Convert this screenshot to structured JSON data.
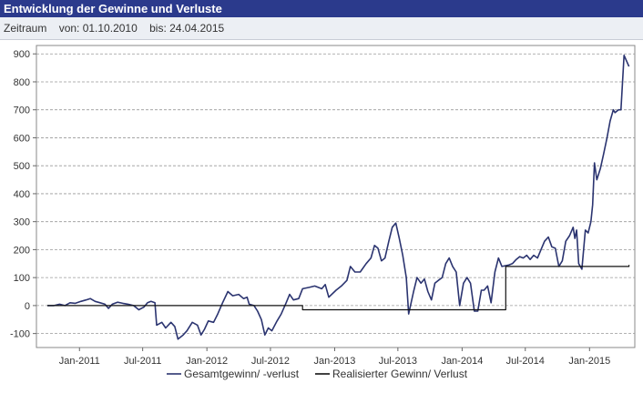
{
  "header": {
    "title": "Entwicklung der Gewinne und Verluste"
  },
  "range": {
    "label": "Zeitraum",
    "from": "von: 01.10.2010",
    "to": "bis: 24.04.2015"
  },
  "colors": {
    "header_bg": "#2b3a8c",
    "series_total": "#2b3470",
    "series_realized": "#111111",
    "grid": "#999999"
  },
  "chart_data": {
    "type": "line",
    "x_axis": {
      "start": "2010-10-01",
      "end": "2015-04-24",
      "ticks": [
        "Jan-2011",
        "Jul-2011",
        "Jan-2012",
        "Jul-2012",
        "Jan-2013",
        "Jul-2013",
        "Jan-2014",
        "Jul-2014",
        "Jan-2015"
      ]
    },
    "y_axis": {
      "ylim": [
        -150,
        930
      ],
      "ticks": [
        -100,
        0,
        100,
        200,
        300,
        400,
        500,
        600,
        700,
        800,
        900
      ],
      "grid": true
    },
    "legend": {
      "placement": "bottom-center"
    },
    "series": [
      {
        "name": "Gesamtgewinn/ -verlust",
        "points": [
          [
            "2010-10-01",
            0
          ],
          [
            "2010-10-20",
            0
          ],
          [
            "2010-11-05",
            5
          ],
          [
            "2010-11-20",
            0
          ],
          [
            "2010-12-05",
            10
          ],
          [
            "2010-12-20",
            8
          ],
          [
            "2011-01-05",
            15
          ],
          [
            "2011-01-20",
            20
          ],
          [
            "2011-02-01",
            25
          ],
          [
            "2011-02-15",
            15
          ],
          [
            "2011-03-01",
            10
          ],
          [
            "2011-03-15",
            5
          ],
          [
            "2011-03-25",
            -10
          ],
          [
            "2011-04-05",
            5
          ],
          [
            "2011-04-20",
            12
          ],
          [
            "2011-05-05",
            8
          ],
          [
            "2011-05-20",
            5
          ],
          [
            "2011-06-05",
            0
          ],
          [
            "2011-06-20",
            -15
          ],
          [
            "2011-07-05",
            -5
          ],
          [
            "2011-07-15",
            10
          ],
          [
            "2011-07-25",
            15
          ],
          [
            "2011-08-05",
            10
          ],
          [
            "2011-08-10",
            -70
          ],
          [
            "2011-08-25",
            -60
          ],
          [
            "2011-09-05",
            -80
          ],
          [
            "2011-09-20",
            -60
          ],
          [
            "2011-10-01",
            -75
          ],
          [
            "2011-10-10",
            -120
          ],
          [
            "2011-10-25",
            -105
          ],
          [
            "2011-11-05",
            -90
          ],
          [
            "2011-11-20",
            -60
          ],
          [
            "2011-12-05",
            -70
          ],
          [
            "2011-12-15",
            -105
          ],
          [
            "2011-12-25",
            -85
          ],
          [
            "2012-01-05",
            -55
          ],
          [
            "2012-01-20",
            -60
          ],
          [
            "2012-02-01",
            -30
          ],
          [
            "2012-02-15",
            10
          ],
          [
            "2012-03-01",
            50
          ],
          [
            "2012-03-15",
            35
          ],
          [
            "2012-04-01",
            40
          ],
          [
            "2012-04-15",
            25
          ],
          [
            "2012-04-25",
            30
          ],
          [
            "2012-05-01",
            5
          ],
          [
            "2012-05-15",
            0
          ],
          [
            "2012-05-25",
            -20
          ],
          [
            "2012-06-05",
            -50
          ],
          [
            "2012-06-15",
            -105
          ],
          [
            "2012-06-25",
            -80
          ],
          [
            "2012-07-05",
            -90
          ],
          [
            "2012-07-20",
            -55
          ],
          [
            "2012-08-01",
            -30
          ],
          [
            "2012-08-15",
            10
          ],
          [
            "2012-08-25",
            40
          ],
          [
            "2012-09-05",
            20
          ],
          [
            "2012-09-20",
            25
          ],
          [
            "2012-10-01",
            60
          ],
          [
            "2012-10-20",
            65
          ],
          [
            "2012-11-05",
            70
          ],
          [
            "2012-11-25",
            60
          ],
          [
            "2012-12-05",
            75
          ],
          [
            "2012-12-15",
            30
          ],
          [
            "2013-01-05",
            55
          ],
          [
            "2013-01-20",
            70
          ],
          [
            "2013-02-05",
            90
          ],
          [
            "2013-02-15",
            140
          ],
          [
            "2013-02-28",
            120
          ],
          [
            "2013-03-15",
            120
          ],
          [
            "2013-04-01",
            150
          ],
          [
            "2013-04-15",
            170
          ],
          [
            "2013-04-25",
            215
          ],
          [
            "2013-05-05",
            205
          ],
          [
            "2013-05-15",
            160
          ],
          [
            "2013-05-25",
            170
          ],
          [
            "2013-06-05",
            230
          ],
          [
            "2013-06-15",
            280
          ],
          [
            "2013-06-25",
            295
          ],
          [
            "2013-07-05",
            240
          ],
          [
            "2013-07-15",
            180
          ],
          [
            "2013-07-25",
            100
          ],
          [
            "2013-08-01",
            -30
          ],
          [
            "2013-08-15",
            50
          ],
          [
            "2013-08-25",
            100
          ],
          [
            "2013-09-05",
            80
          ],
          [
            "2013-09-15",
            95
          ],
          [
            "2013-09-25",
            50
          ],
          [
            "2013-10-05",
            20
          ],
          [
            "2013-10-15",
            80
          ],
          [
            "2013-10-25",
            90
          ],
          [
            "2013-11-05",
            100
          ],
          [
            "2013-11-15",
            150
          ],
          [
            "2013-11-25",
            170
          ],
          [
            "2013-12-05",
            140
          ],
          [
            "2013-12-15",
            120
          ],
          [
            "2013-12-25",
            0
          ],
          [
            "2014-01-05",
            80
          ],
          [
            "2014-01-15",
            100
          ],
          [
            "2014-01-25",
            80
          ],
          [
            "2014-02-05",
            -20
          ],
          [
            "2014-02-15",
            -20
          ],
          [
            "2014-02-25",
            55
          ],
          [
            "2014-03-05",
            55
          ],
          [
            "2014-03-15",
            70
          ],
          [
            "2014-03-25",
            10
          ],
          [
            "2014-04-05",
            120
          ],
          [
            "2014-04-15",
            170
          ],
          [
            "2014-04-25",
            140
          ],
          [
            "2014-05-15",
            145
          ],
          [
            "2014-05-25",
            150
          ],
          [
            "2014-06-05",
            165
          ],
          [
            "2014-06-15",
            175
          ],
          [
            "2014-06-25",
            170
          ],
          [
            "2014-07-05",
            180
          ],
          [
            "2014-07-15",
            165
          ],
          [
            "2014-07-25",
            180
          ],
          [
            "2014-08-05",
            170
          ],
          [
            "2014-08-15",
            200
          ],
          [
            "2014-08-25",
            230
          ],
          [
            "2014-09-05",
            245
          ],
          [
            "2014-09-15",
            210
          ],
          [
            "2014-09-25",
            205
          ],
          [
            "2014-10-05",
            140
          ],
          [
            "2014-10-15",
            160
          ],
          [
            "2014-10-25",
            230
          ],
          [
            "2014-11-05",
            250
          ],
          [
            "2014-11-15",
            280
          ],
          [
            "2014-11-20",
            240
          ],
          [
            "2014-11-25",
            270
          ],
          [
            "2014-12-01",
            150
          ],
          [
            "2014-12-10",
            130
          ],
          [
            "2014-12-20",
            270
          ],
          [
            "2014-12-28",
            260
          ],
          [
            "2015-01-05",
            300
          ],
          [
            "2015-01-10",
            360
          ],
          [
            "2015-01-15",
            510
          ],
          [
            "2015-01-22",
            450
          ],
          [
            "2015-02-01",
            490
          ],
          [
            "2015-02-10",
            540
          ],
          [
            "2015-02-20",
            600
          ],
          [
            "2015-03-01",
            660
          ],
          [
            "2015-03-10",
            700
          ],
          [
            "2015-03-15",
            690
          ],
          [
            "2015-03-25",
            700
          ],
          [
            "2015-04-01",
            700
          ],
          [
            "2015-04-10",
            895
          ],
          [
            "2015-04-24",
            855
          ]
        ]
      },
      {
        "name": "Realisierter Gewinn/ Verlust",
        "points": [
          [
            "2010-10-01",
            0
          ],
          [
            "2012-09-30",
            0
          ],
          [
            "2012-10-01",
            -15
          ],
          [
            "2014-05-05",
            -15
          ],
          [
            "2014-05-06",
            140
          ],
          [
            "2015-04-24",
            145
          ]
        ]
      }
    ]
  }
}
